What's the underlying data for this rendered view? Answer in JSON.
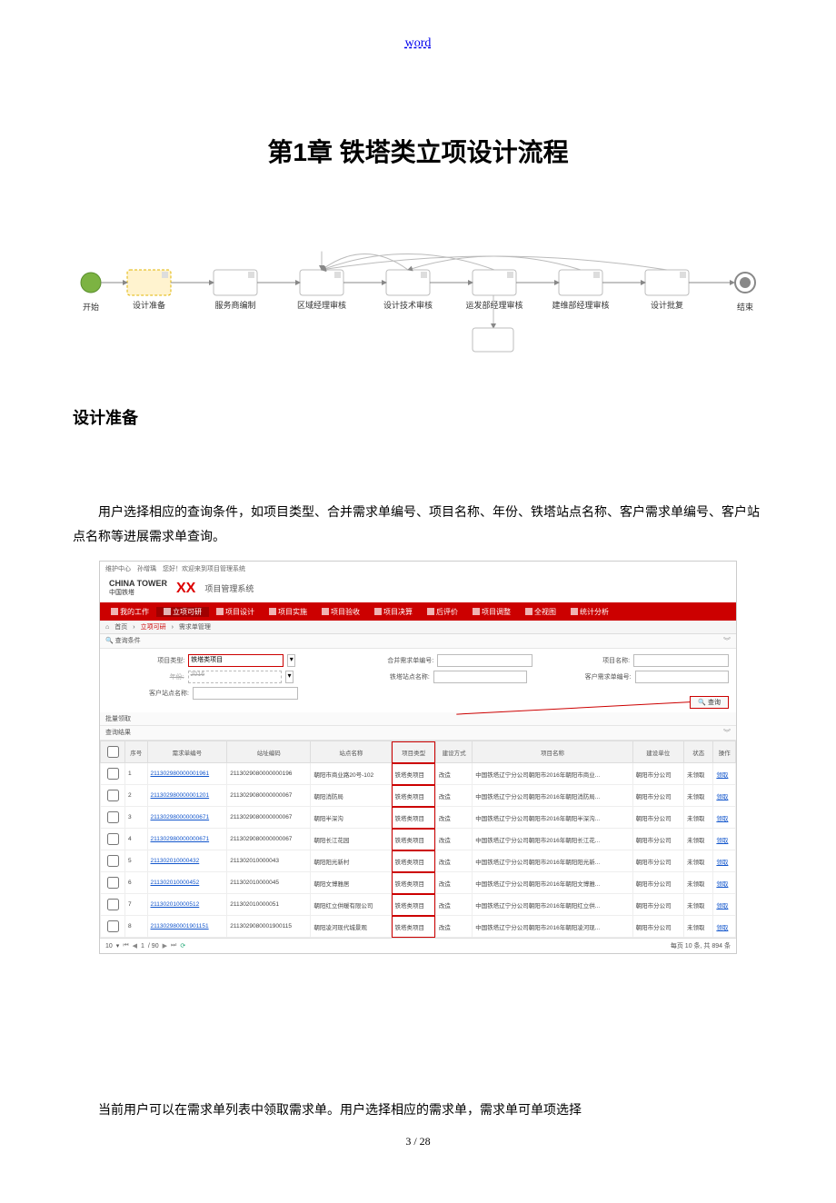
{
  "header_link": "word",
  "chapter_title": "第1章 铁塔类立项设计流程",
  "flow": {
    "start": "开始",
    "steps": [
      "设计准备",
      "服务商编制",
      "区域经理审核",
      "设计技术审核",
      "运发部经理审核",
      "建维部经理审核",
      "设计批复"
    ],
    "end": "结束",
    "box_stroke": "#bdbdbd",
    "start_fill": "#7cb342",
    "prep_fill": "#fff3cf",
    "prep_stroke": "#e0b400"
  },
  "section_title": "设计准备",
  "paragraph1": "用户选择相应的查询条件，如项目类型、合并需求单编号、项目名称、年份、铁塔站点名称、客户需求单编号、客户站点名称等进展需求单查询。",
  "paragraph2": "当前用户可以在需求单列表中领取需求单。用户选择相应的需求单，需求单可单项选择",
  "page_number": "3 / 28",
  "screenshot": {
    "top_text": "维护中心　孙增瑀　您好！欢迎来到项目管理系统",
    "logo_en": "CHINA TOWER",
    "logo_cn": "中国铁塔",
    "system_name": "项目管理系统",
    "nav": [
      "我的工作",
      "立项可研",
      "项目设计",
      "项目实施",
      "项目验收",
      "项目决算",
      "后评价",
      "项目调整",
      "全视图",
      "统计分析"
    ],
    "nav_active_index": 1,
    "breadcrumb": {
      "home": "首页",
      "l1": "立项可研",
      "l2": "需求单管理"
    },
    "query_panel_title": "查询条件",
    "filters": {
      "project_type_label": "项目类型:",
      "project_type_value": "铁塔类项目",
      "year_label": "年份:",
      "year_value": "2016",
      "cust_site_label": "客户站点名称:",
      "merge_req_label": "合并需求单编号:",
      "tower_site_label": "铁塔站点名称:",
      "proj_name_label": "项目名称:",
      "cust_req_label": "客户需求单编号:",
      "query_btn": "查询"
    },
    "batch_panel": "批量领取",
    "result_panel": "查询结果",
    "columns": [
      "",
      "序号",
      "需求单编号",
      "站址编码",
      "站点名称",
      "项目类型",
      "建设方式",
      "项目名称",
      "建设单位",
      "状态",
      "操作"
    ],
    "red_col_index": 5,
    "rows": [
      {
        "n": "1",
        "req": "211302980000001961",
        "site": "2113029080000000196",
        "name": "朝阳市商业路20号-102",
        "type": "铁塔类项目",
        "mode": "改造",
        "proj": "中国铁塔辽宁分公司朝阳市2016年朝阳市商业...",
        "unit": "朝阳市分公司",
        "status": "未领取",
        "op": "领取"
      },
      {
        "n": "2",
        "req": "211302980000001201",
        "site": "2113029080000000067",
        "name": "朝阳消防局",
        "type": "铁塔类项目",
        "mode": "改造",
        "proj": "中国铁塔辽宁分公司朝阳市2016年朝阳消防局...",
        "unit": "朝阳市分公司",
        "status": "未领取",
        "op": "领取"
      },
      {
        "n": "3",
        "req": "211302980000000671",
        "site": "2113029080000000067",
        "name": "朝阳半深沟",
        "type": "铁塔类项目",
        "mode": "改造",
        "proj": "中国铁塔辽宁分公司朝阳市2016年朝阳半深沟...",
        "unit": "朝阳市分公司",
        "status": "未领取",
        "op": "领取"
      },
      {
        "n": "4",
        "req": "211302980000000671",
        "site": "2113029080000000067",
        "name": "朝阳长江花园",
        "type": "铁塔类项目",
        "mode": "改造",
        "proj": "中国铁塔辽宁分公司朝阳市2016年朝阳长江花...",
        "unit": "朝阳市分公司",
        "status": "未领取",
        "op": "领取"
      },
      {
        "n": "5",
        "req": "211302010000432",
        "site": "211302010000043",
        "name": "朝阳阳光新村",
        "type": "铁塔类项目",
        "mode": "改造",
        "proj": "中国铁塔辽宁分公司朝阳市2016年朝阳阳光新...",
        "unit": "朝阳市分公司",
        "status": "未领取",
        "op": "领取"
      },
      {
        "n": "6",
        "req": "211302010000452",
        "site": "211302010000045",
        "name": "朝阳文博雅居",
        "type": "铁塔类项目",
        "mode": "改造",
        "proj": "中国铁塔辽宁分公司朝阳市2016年朝阳文博雅...",
        "unit": "朝阳市分公司",
        "status": "未领取",
        "op": "领取"
      },
      {
        "n": "7",
        "req": "211302010000512",
        "site": "211302010000051",
        "name": "朝阳红立供暖有限公司",
        "type": "铁塔类项目",
        "mode": "改造",
        "proj": "中国铁塔辽宁分公司朝阳市2016年朝阳红立供...",
        "unit": "朝阳市分公司",
        "status": "未领取",
        "op": "领取"
      },
      {
        "n": "8",
        "req": "211302980001901151",
        "site": "2113029080001900115",
        "name": "朝阳凌河现代城景观",
        "type": "铁塔类项目",
        "mode": "改造",
        "proj": "中国铁塔辽宁分公司朝阳市2016年朝阳凌河现...",
        "unit": "朝阳市分公司",
        "status": "未领取",
        "op": "领取"
      }
    ],
    "pager": {
      "size": "10",
      "page": "1",
      "total_pages": "/ 90",
      "summary": "每页 10 条, 共 894 条"
    }
  }
}
